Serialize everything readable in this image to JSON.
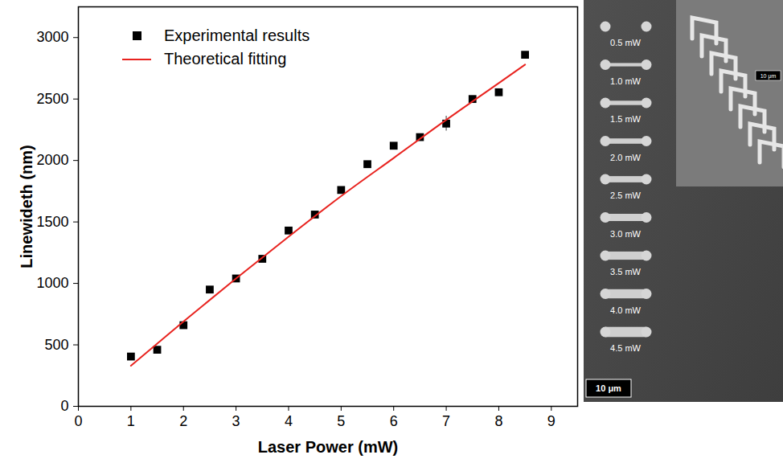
{
  "chart_data": {
    "type": "scatter",
    "xlabel": "Laser Power (mW)",
    "ylabel": "Linewideth (nm)",
    "xlim": [
      0,
      9.5
    ],
    "xticks": [
      0,
      1,
      2,
      3,
      4,
      5,
      6,
      7,
      8,
      9
    ],
    "ylim": [
      0,
      3250
    ],
    "yticks": [
      0,
      500,
      1000,
      1500,
      2000,
      2500,
      3000
    ],
    "grid": false,
    "legend": "upper left",
    "series": [
      {
        "name": "Experimental results",
        "type": "scatter",
        "marker": "square",
        "color": "#000000",
        "x": [
          1,
          1.5,
          2,
          2.5,
          3,
          3.5,
          4,
          4.5,
          5,
          5.5,
          6,
          6.5,
          7,
          7.5,
          8,
          8.5
        ],
        "values": [
          405,
          460,
          660,
          950,
          1040,
          1200,
          1430,
          1560,
          1760,
          1970,
          2120,
          2190,
          2300,
          2500,
          2555,
          2860
        ],
        "error": [
          null,
          null,
          null,
          null,
          null,
          null,
          null,
          null,
          null,
          null,
          null,
          null,
          60,
          null,
          null,
          null
        ]
      },
      {
        "name": "Theoretical fitting",
        "type": "line",
        "line_style": "solid",
        "color": "#e8231f",
        "x": [
          1,
          2,
          3,
          4,
          5,
          6,
          7,
          8,
          8.5
        ],
        "values": [
          330,
          690,
          1040,
          1380,
          1710,
          2020,
          2330,
          2630,
          2780
        ]
      }
    ]
  },
  "sem_image": {
    "labels": [
      "0.5 mW",
      "1.0 mW",
      "1.5 mW",
      "2.0 mW",
      "2.5 mW",
      "3.0 mW",
      "3.5 mW",
      "4.0 mW",
      "4.5 mW"
    ],
    "scale_bar": "10 μm",
    "inset_scale_bar": "10 μm"
  }
}
